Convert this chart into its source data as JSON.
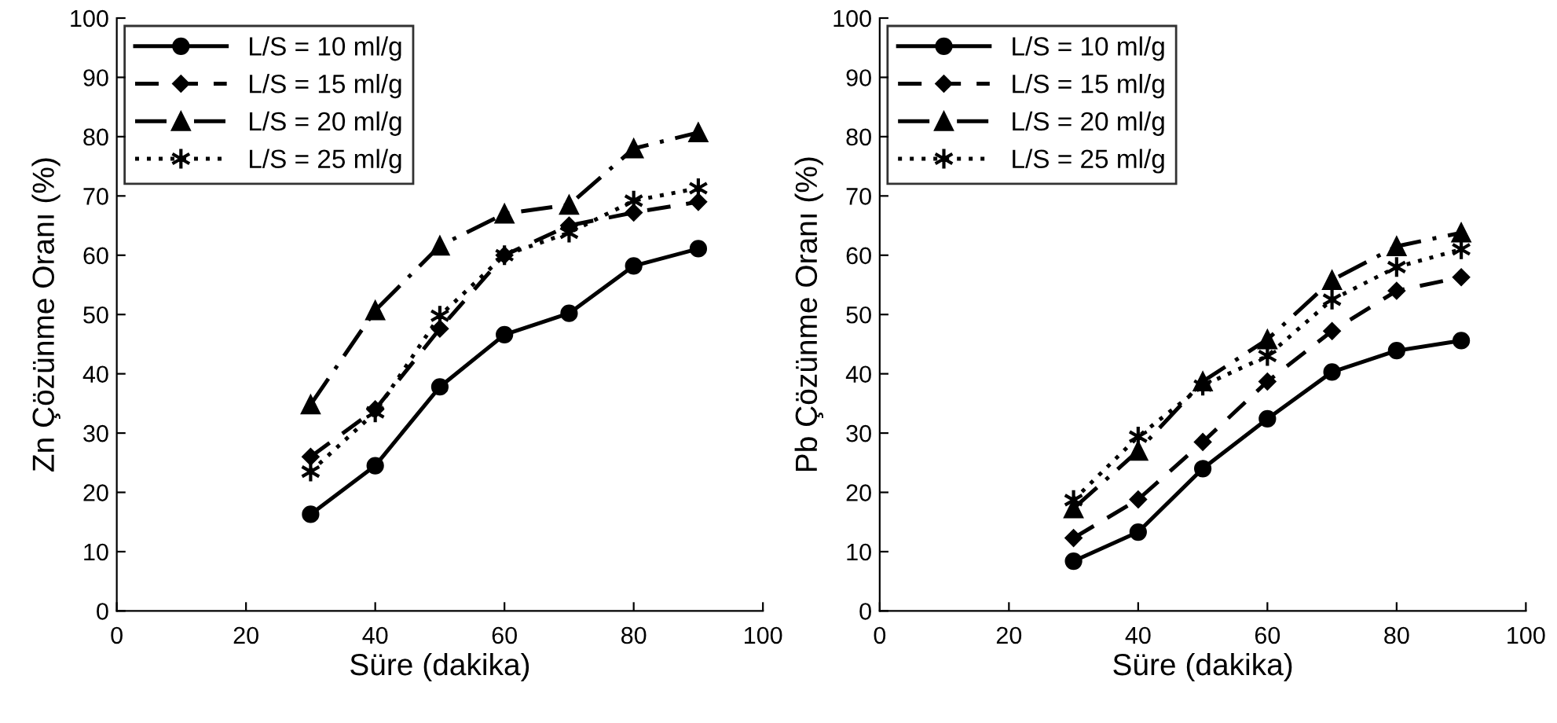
{
  "chart_data": [
    {
      "type": "line",
      "xlabel": "Süre (dakika)",
      "ylabel": "Zn Çözünme Oranı (%)",
      "x": [
        30,
        40,
        50,
        60,
        70,
        80,
        90
      ],
      "xlim": [
        0,
        100
      ],
      "xticks": [
        0,
        20,
        40,
        60,
        80,
        100
      ],
      "ylim": [
        0,
        100
      ],
      "yticks": [
        0,
        10,
        20,
        30,
        40,
        50,
        60,
        70,
        80,
        90,
        100
      ],
      "grid": false,
      "legend": "top left",
      "series": [
        {
          "name": "L/S = 10 ml/g",
          "color": "#000000",
          "marker": "circle",
          "line_style": "solid",
          "values": [
            16.3,
            24.5,
            37.8,
            46.6,
            50.2,
            58.2,
            61.1
          ]
        },
        {
          "name": "L/S = 15 ml/g",
          "color": "#000000",
          "marker": "diamond",
          "line_style": "dashed",
          "values": [
            26,
            34,
            47.6,
            60,
            65,
            67.2,
            69
          ]
        },
        {
          "name": "L/S = 20 ml/g",
          "color": "#000000",
          "marker": "triangle",
          "line_style": "dashdot",
          "values": [
            34.8,
            50.7,
            61.6,
            67,
            68.5,
            78,
            80.7
          ]
        },
        {
          "name": "L/S = 25 ml/g",
          "color": "#000000",
          "marker": "cross",
          "line_style": "dotted",
          "values": [
            23.5,
            33.5,
            49.8,
            60,
            63.8,
            69.2,
            71.3
          ]
        }
      ]
    },
    {
      "type": "line",
      "xlabel": "Süre (dakika)",
      "ylabel": "Pb Çözünme Oranı (%)",
      "x": [
        30,
        40,
        50,
        60,
        70,
        80,
        90
      ],
      "xlim": [
        0,
        100
      ],
      "xticks": [
        0,
        20,
        40,
        60,
        80,
        100
      ],
      "ylim": [
        0,
        100
      ],
      "yticks": [
        0,
        10,
        20,
        30,
        40,
        50,
        60,
        70,
        80,
        90,
        100
      ],
      "grid": false,
      "legend": "top left",
      "series": [
        {
          "name": "L/S = 10 ml/g",
          "color": "#000000",
          "marker": "circle",
          "line_style": "solid",
          "values": [
            8.4,
            13.3,
            24,
            32.4,
            40.3,
            43.9,
            45.6
          ]
        },
        {
          "name": "L/S = 15 ml/g",
          "color": "#000000",
          "marker": "diamond",
          "line_style": "dashed",
          "values": [
            12.3,
            18.8,
            28.5,
            38.7,
            47.2,
            54,
            56.3
          ]
        },
        {
          "name": "L/S = 20 ml/g",
          "color": "#000000",
          "marker": "triangle",
          "line_style": "dashdot",
          "values": [
            17.3,
            27,
            38.7,
            45.8,
            55.8,
            61.5,
            63.8
          ]
        },
        {
          "name": "L/S = 25 ml/g",
          "color": "#000000",
          "marker": "cross",
          "line_style": "dotted",
          "values": [
            18.7,
            29.4,
            38,
            43,
            52.5,
            58,
            61
          ]
        }
      ]
    }
  ]
}
